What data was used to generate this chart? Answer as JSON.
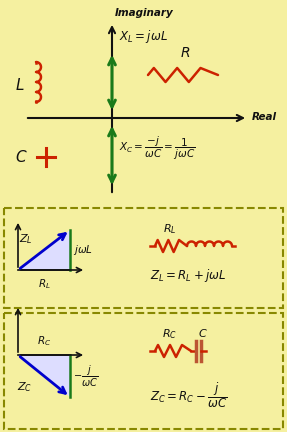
{
  "bg_color": "#F5F0A0",
  "red_color": "#CC2200",
  "green_color": "#1A7A1A",
  "blue_color": "#0000CC",
  "black_color": "#111111",
  "olive_color": "#888800",
  "cap_color": "#BB5533",
  "figsize": [
    2.87,
    4.32
  ],
  "dpi": 100,
  "imag_label": "Imaginary",
  "real_label": "Real",
  "XL_formula": "$X_L = j\\omega L$",
  "XC_formula": "$X_C = \\dfrac{-j}{\\omega C} = \\dfrac{1}{j\\omega C}$",
  "ZL_formula": "$Z_L = R_L + j\\omega L$",
  "ZC_formula": "$Z_C = R_C - \\dfrac{j}{\\omega C}$"
}
